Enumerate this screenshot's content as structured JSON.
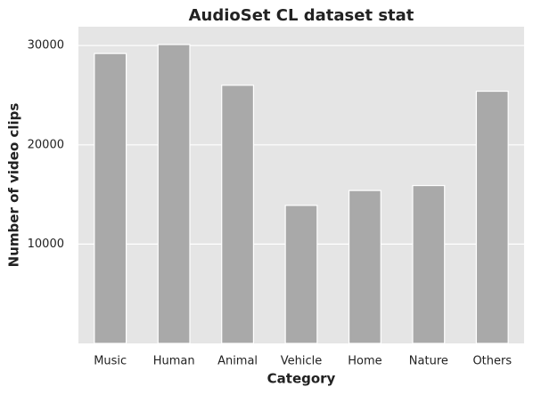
{
  "chart_data": {
    "type": "bar",
    "title": "AudioSet CL dataset stat",
    "x_label": "Category",
    "y_label": "Number of video clips",
    "categories": [
      "Music",
      "Human",
      "Animal",
      "Vehicle",
      "Home",
      "Nature",
      "Others"
    ],
    "values": [
      29200,
      30100,
      26000,
      13900,
      15400,
      15900,
      25400
    ],
    "color": "#a9a9a9",
    "ylim": [
      0,
      31900
    ],
    "yticks": [
      10000,
      20000,
      30000
    ],
    "grid": true
  }
}
